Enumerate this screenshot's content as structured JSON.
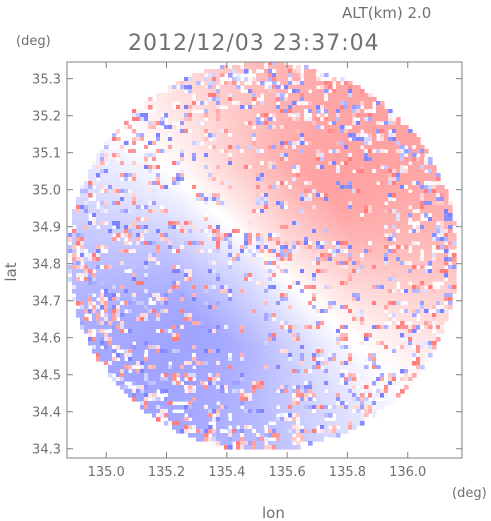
{
  "header": {
    "altitude_label": "ALT(km) 2.0",
    "timestamp": "2012/12/03 23:37:04",
    "unit_top": "(deg)"
  },
  "chart_data": {
    "type": "heatmap",
    "title": "2012/12/03 23:37:04",
    "xlabel": "lon",
    "ylabel": "lat",
    "x_unit_label": "(deg)",
    "y_unit_label": "(deg)",
    "xlim": [
      134.87,
      136.18
    ],
    "ylim": [
      34.275,
      35.345
    ],
    "x_ticks": [
      135.0,
      135.2,
      135.4,
      135.6,
      135.8,
      136.0
    ],
    "x_tick_labels": [
      "135.0",
      "135.2",
      "135.4",
      "135.6",
      "135.8",
      "136.0"
    ],
    "y_ticks": [
      34.3,
      34.4,
      34.5,
      34.6,
      34.7,
      34.8,
      34.9,
      35.0,
      35.1,
      35.2,
      35.3
    ],
    "y_tick_labels": [
      "34.3",
      "34.4",
      "34.5",
      "34.6",
      "34.7",
      "34.8",
      "34.9",
      "35.0",
      "35.1",
      "35.2",
      "35.3"
    ],
    "scan_center": [
      135.52,
      34.82
    ],
    "scan_radius_lon": 0.645,
    "scan_radius_lat": 0.525,
    "grid": false,
    "colors": {
      "positive": "#f28c8c",
      "negative": "#8c8cf2",
      "neutral": "#ffffff",
      "frame": "#808080"
    }
  }
}
